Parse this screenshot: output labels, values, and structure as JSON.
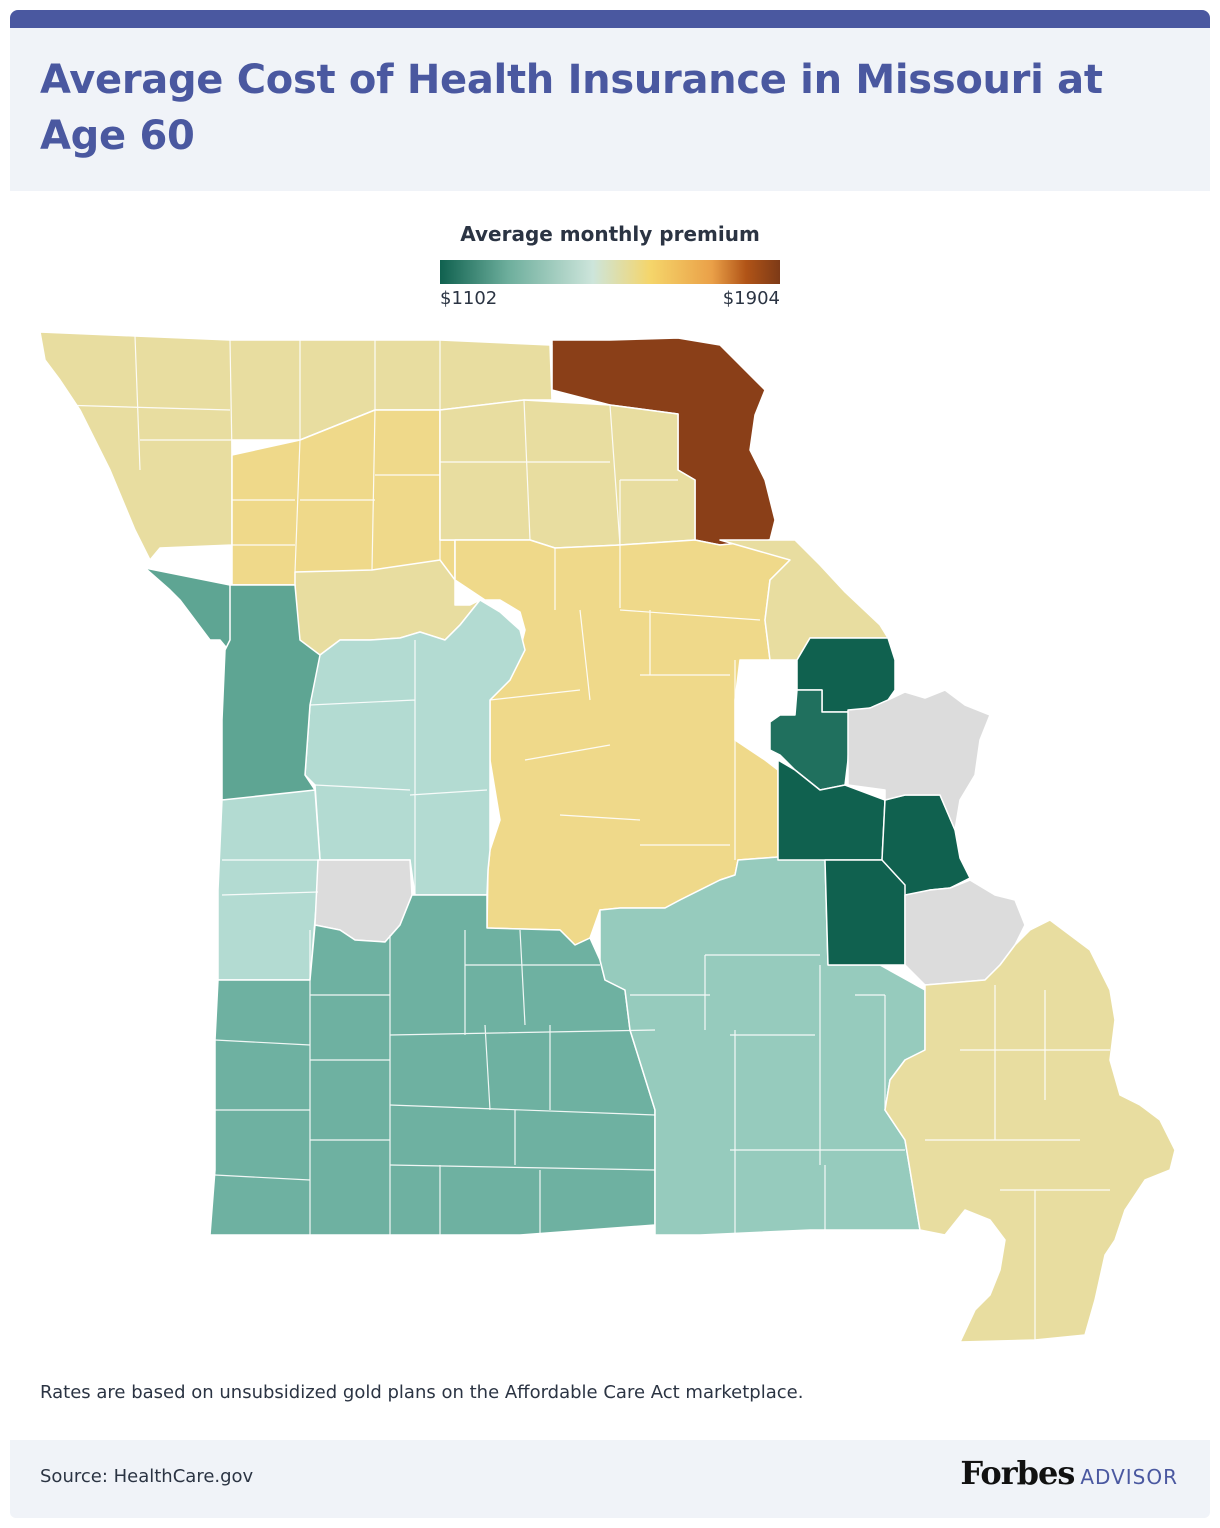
{
  "header": {
    "title": "Average Cost of Health Insurance in Missouri at Age 60"
  },
  "legend": {
    "title": "Average monthly premium",
    "min_label": "$1102",
    "max_label": "$1904",
    "min_value": 1102,
    "max_value": 1904
  },
  "map": {
    "region": "Missouri counties",
    "tiers": [
      {
        "color": "#8a3f18",
        "level": "highest"
      },
      {
        "color": "#efd98a",
        "level": "upper-middle"
      },
      {
        "color": "#e8dda0",
        "level": "middle-upper"
      },
      {
        "color": "#b3dbd2",
        "level": "middle-low"
      },
      {
        "color": "#96cbbd",
        "level": "low-middle"
      },
      {
        "color": "#6eb1a1",
        "level": "low"
      },
      {
        "color": "#5ea593",
        "level": "lower"
      },
      {
        "color": "#10614f",
        "level": "lowest"
      },
      {
        "color": "#dcdcdc",
        "level": "no data"
      }
    ]
  },
  "note": "Rates are based on unsubsidized gold plans on the Affordable Care Act marketplace.",
  "footer": {
    "source": "Source: HealthCare.gov",
    "logo_main": "Forbes",
    "logo_sub": "ADVISOR"
  }
}
